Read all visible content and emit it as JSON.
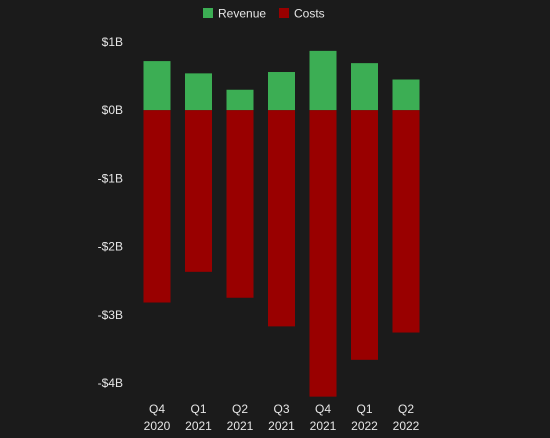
{
  "chart_data": {
    "type": "bar",
    "stacked": true,
    "categories": [
      [
        "Q4",
        "2020"
      ],
      [
        "Q1",
        "2021"
      ],
      [
        "Q2",
        "2021"
      ],
      [
        "Q3",
        "2021"
      ],
      [
        "Q4",
        "2021"
      ],
      [
        "Q1",
        "2022"
      ],
      [
        "Q2",
        "2022"
      ]
    ],
    "series": [
      {
        "name": "Revenue",
        "color": "#3cae54",
        "values": [
          0.72,
          0.54,
          0.3,
          0.56,
          0.87,
          0.69,
          0.45
        ]
      },
      {
        "name": "Costs",
        "color": "#990000",
        "values": [
          -2.82,
          -2.37,
          -2.75,
          -3.17,
          -4.2,
          -3.66,
          -3.26
        ]
      }
    ],
    "ylim": [
      -4,
      1
    ],
    "yticks": [
      {
        "value": 1,
        "label": "$1B"
      },
      {
        "value": 0,
        "label": "$0B"
      },
      {
        "value": -1,
        "label": "-$1B"
      },
      {
        "value": -2,
        "label": "-$2B"
      },
      {
        "value": -3,
        "label": "-$3B"
      },
      {
        "value": -4,
        "label": "-$4B"
      }
    ],
    "legend": {
      "position": "top-center"
    },
    "grid": false,
    "title": "",
    "xlabel": "",
    "ylabel": ""
  }
}
